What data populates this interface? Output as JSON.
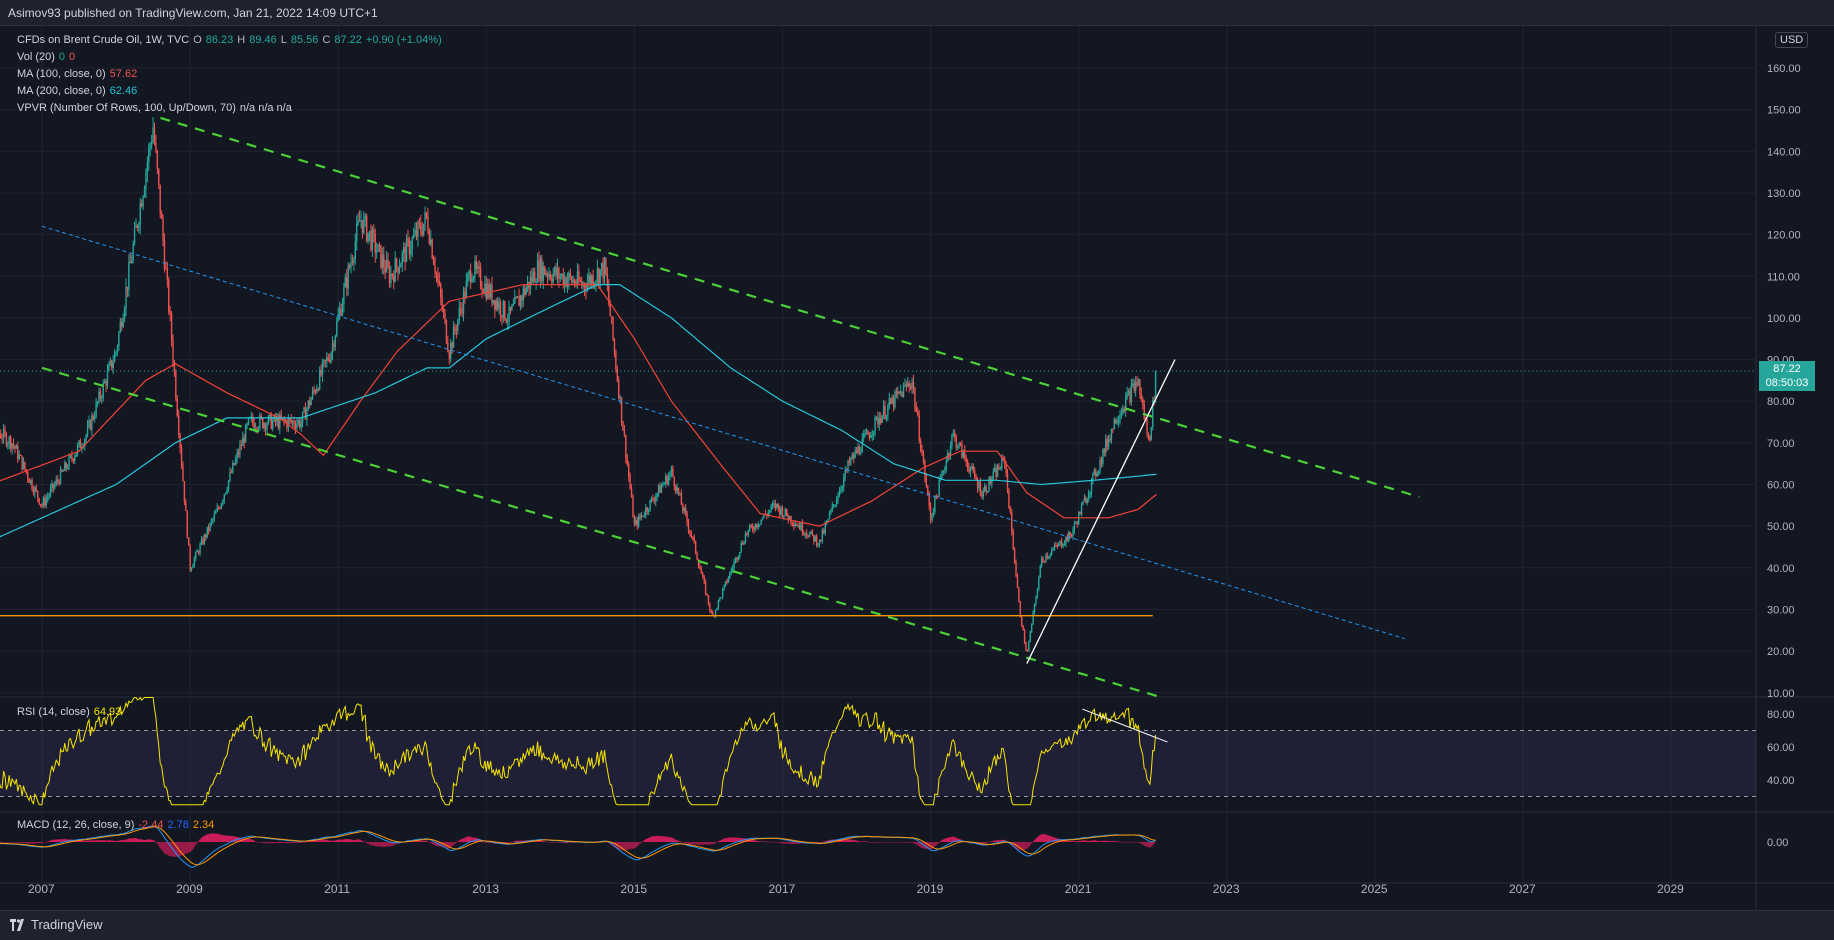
{
  "header": {
    "text": "Asimov93 published on TradingView.com, Jan 21, 2022 14:09 UTC+1"
  },
  "footer": {
    "brand": "TradingView"
  },
  "legend": {
    "symbol": "CFDs on Brent Crude Oil, 1W, TVC",
    "o_label": "O",
    "o_val": "86.23",
    "h_label": "H",
    "h_val": "89.46",
    "l_label": "L",
    "l_val": "85.56",
    "c_label": "C",
    "c_val": "87.22",
    "change": "+0.90 (+1.04%)",
    "vol": "Vol (20)",
    "vol_a": "0",
    "vol_b": "0",
    "ma100": "MA (100, close, 0)",
    "ma100_val": "57.62",
    "ma200": "MA (200, close, 0)",
    "ma200_val": "62.46",
    "vpvr": "VPVR (Number Of Rows, 100, Up/Down, 70)",
    "vpvr_vals": "n/a  n/a  n/a",
    "rsi": "RSI (14, close)",
    "rsi_val": "64.93",
    "macd": "MACD (12, 26, close, 9)",
    "macd_a": "-2.44",
    "macd_b": "2.78",
    "macd_c": "2.34"
  },
  "currency": "USD",
  "last_price": {
    "value": "87.22",
    "countdown": "08:50:03"
  },
  "colors": {
    "up": "#26a69a",
    "down": "#ef5350",
    "ma100": "#f44336",
    "ma200": "#26c6da",
    "channel": "#4cd137",
    "midline": "#2196f3",
    "support": "#ff9800",
    "rsi": "#f5e400",
    "rsi_band": "#7e57c2",
    "macd": "#2196f3",
    "signal": "#ff9800",
    "hist": "#e91e63"
  },
  "chart_data": {
    "type": "candlestick",
    "title": "CFDs on Brent Crude Oil, 1W, TVC",
    "ylim": [
      10,
      160
    ],
    "y_ticks": [
      "160.00",
      "150.00",
      "140.00",
      "130.00",
      "120.00",
      "110.00",
      "100.00",
      "90.00",
      "80.00",
      "70.00",
      "60.00",
      "50.00",
      "40.00",
      "30.00",
      "20.00",
      "10.00"
    ],
    "x_ticks": [
      "2007",
      "2009",
      "2011",
      "2013",
      "2015",
      "2017",
      "2019",
      "2021",
      "2023",
      "2025",
      "2027",
      "2029"
    ],
    "price_path": [
      {
        "t": 2006.0,
        "p": 78
      },
      {
        "t": 2006.6,
        "p": 70
      },
      {
        "t": 2007.0,
        "p": 55
      },
      {
        "t": 2007.6,
        "p": 72
      },
      {
        "t": 2008.0,
        "p": 92
      },
      {
        "t": 2008.5,
        "p": 146
      },
      {
        "t": 2008.75,
        "p": 95
      },
      {
        "t": 2009.0,
        "p": 40
      },
      {
        "t": 2009.4,
        "p": 55
      },
      {
        "t": 2009.8,
        "p": 75
      },
      {
        "t": 2010.5,
        "p": 75
      },
      {
        "t": 2010.9,
        "p": 92
      },
      {
        "t": 2011.3,
        "p": 124
      },
      {
        "t": 2011.7,
        "p": 110
      },
      {
        "t": 2012.2,
        "p": 124
      },
      {
        "t": 2012.5,
        "p": 92
      },
      {
        "t": 2012.8,
        "p": 112
      },
      {
        "t": 2013.3,
        "p": 100
      },
      {
        "t": 2013.7,
        "p": 112
      },
      {
        "t": 2014.3,
        "p": 108
      },
      {
        "t": 2014.6,
        "p": 112
      },
      {
        "t": 2015.0,
        "p": 50
      },
      {
        "t": 2015.5,
        "p": 63
      },
      {
        "t": 2015.8,
        "p": 46
      },
      {
        "t": 2016.05,
        "p": 28
      },
      {
        "t": 2016.5,
        "p": 48
      },
      {
        "t": 2016.9,
        "p": 55
      },
      {
        "t": 2017.5,
        "p": 46
      },
      {
        "t": 2017.9,
        "p": 65
      },
      {
        "t": 2018.3,
        "p": 76
      },
      {
        "t": 2018.75,
        "p": 85
      },
      {
        "t": 2019.0,
        "p": 52
      },
      {
        "t": 2019.3,
        "p": 72
      },
      {
        "t": 2019.7,
        "p": 58
      },
      {
        "t": 2020.0,
        "p": 66
      },
      {
        "t": 2020.2,
        "p": 30
      },
      {
        "t": 2020.3,
        "p": 19
      },
      {
        "t": 2020.5,
        "p": 42
      },
      {
        "t": 2020.9,
        "p": 48
      },
      {
        "t": 2021.3,
        "p": 66
      },
      {
        "t": 2021.5,
        "p": 76
      },
      {
        "t": 2021.8,
        "p": 85
      },
      {
        "t": 2021.95,
        "p": 70
      },
      {
        "t": 2022.05,
        "p": 87.22
      }
    ],
    "ma100_path": [
      {
        "t": 2006.0,
        "p": 58
      },
      {
        "t": 2007.5,
        "p": 68
      },
      {
        "t": 2008.4,
        "p": 85
      },
      {
        "t": 2008.8,
        "p": 89
      },
      {
        "t": 2009.5,
        "p": 82
      },
      {
        "t": 2010.2,
        "p": 76
      },
      {
        "t": 2010.5,
        "p": 72
      },
      {
        "t": 2010.8,
        "p": 67
      },
      {
        "t": 2011.3,
        "p": 80
      },
      {
        "t": 2011.8,
        "p": 92
      },
      {
        "t": 2012.5,
        "p": 104
      },
      {
        "t": 2013.5,
        "p": 108
      },
      {
        "t": 2014.5,
        "p": 108
      },
      {
        "t": 2015.0,
        "p": 95
      },
      {
        "t": 2015.5,
        "p": 80
      },
      {
        "t": 2016.2,
        "p": 64
      },
      {
        "t": 2016.7,
        "p": 53
      },
      {
        "t": 2017.5,
        "p": 50
      },
      {
        "t": 2018.2,
        "p": 56
      },
      {
        "t": 2018.9,
        "p": 64
      },
      {
        "t": 2019.4,
        "p": 68
      },
      {
        "t": 2019.9,
        "p": 68
      },
      {
        "t": 2020.3,
        "p": 58
      },
      {
        "t": 2020.8,
        "p": 52
      },
      {
        "t": 2021.4,
        "p": 52
      },
      {
        "t": 2021.8,
        "p": 54
      },
      {
        "t": 2022.05,
        "p": 57.62
      }
    ],
    "ma200_path": [
      {
        "t": 2006.0,
        "p": 44
      },
      {
        "t": 2007.0,
        "p": 52
      },
      {
        "t": 2008.0,
        "p": 60
      },
      {
        "t": 2008.8,
        "p": 70
      },
      {
        "t": 2009.5,
        "p": 76
      },
      {
        "t": 2010.5,
        "p": 76
      },
      {
        "t": 2011.5,
        "p": 82
      },
      {
        "t": 2012.2,
        "p": 88
      },
      {
        "t": 2012.5,
        "p": 88
      },
      {
        "t": 2013.0,
        "p": 95
      },
      {
        "t": 2013.8,
        "p": 102
      },
      {
        "t": 2014.5,
        "p": 108
      },
      {
        "t": 2014.8,
        "p": 108
      },
      {
        "t": 2015.5,
        "p": 100
      },
      {
        "t": 2016.3,
        "p": 88
      },
      {
        "t": 2017.0,
        "p": 80
      },
      {
        "t": 2017.8,
        "p": 73
      },
      {
        "t": 2018.5,
        "p": 65
      },
      {
        "t": 2019.2,
        "p": 61
      },
      {
        "t": 2019.9,
        "p": 61
      },
      {
        "t": 2020.5,
        "p": 60
      },
      {
        "t": 2021.2,
        "p": 61
      },
      {
        "t": 2021.8,
        "p": 62
      },
      {
        "t": 2022.05,
        "p": 62.46
      }
    ],
    "rsi_ylim": [
      25,
      90
    ],
    "rsi_ticks": [
      "80.00",
      "60.00",
      "40.00"
    ],
    "rsi_bands": [
      30,
      70
    ],
    "rsi_last": 64.93,
    "macd_ticks": [
      "0.00"
    ],
    "macd_last": {
      "macd": -2.44,
      "signal": 2.78,
      "hist": 2.34
    }
  }
}
